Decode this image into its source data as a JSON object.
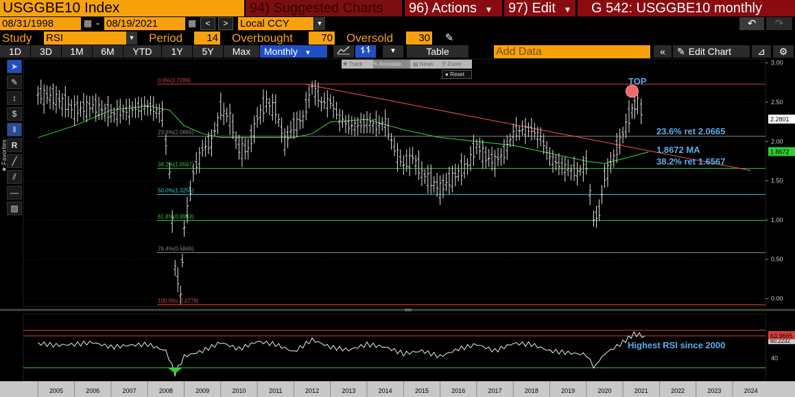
{
  "header": {
    "ticker": "USGGBE10 Index",
    "suggested": "94) Suggested Charts",
    "actions": "96) Actions",
    "edit": "97) Edit",
    "title": "G 542: USGGBE10 monthly"
  },
  "range": {
    "start": "08/31/1998",
    "end": "08/19/2021",
    "sep": "-",
    "currency": "Local CCY"
  },
  "study": {
    "label": "Study",
    "value": "RSI",
    "period_label": "Period",
    "period": "14",
    "overbought_label": "Overbought",
    "overbought": "70",
    "oversold_label": "Oversold",
    "oversold": "30"
  },
  "toolbar": {
    "periods": [
      "1D",
      "3D",
      "1M",
      "6M",
      "YTD",
      "1Y",
      "5Y",
      "Max"
    ],
    "frequency": "Monthly",
    "table": "Table",
    "add_data": "Add Data",
    "edit_chart": "Edit Chart"
  },
  "chart_tools": {
    "track": "Track",
    "annotate": "Annotate",
    "news": "News",
    "zoom": "Zoom",
    "reset": "Reset",
    "favorites": "Favorites"
  },
  "chart_data": {
    "type": "line",
    "price_axis": {
      "ylim": [
        -0.1,
        3.05
      ],
      "ticks": [
        "3.00",
        "2.50",
        "2.00",
        "1.50",
        "1.00",
        "0.50",
        "0.00"
      ],
      "last_price": "2.2801",
      "last_ma": "1.8672",
      "last_price_color": "#ffffff",
      "last_ma_color": "#33cc33"
    },
    "rsi_axis": {
      "ylim": [
        20,
        80
      ],
      "ticks": [
        "40"
      ],
      "last_rsi": "63.9665",
      "partial_label": "60.2232"
    },
    "x_ticks": [
      "2005",
      "2006",
      "2007",
      "2008",
      "2009",
      "2010",
      "2011",
      "2012",
      "2013",
      "2014",
      "2015",
      "2016",
      "2017",
      "2018",
      "2019",
      "2020",
      "2021",
      "2022",
      "2023",
      "2024"
    ],
    "fib_levels": [
      {
        "label": "0.0%(2.7289)",
        "value": 2.7289,
        "color": "#d94040"
      },
      {
        "label": "23.6%(2.0665)",
        "value": 2.0665,
        "color": "#888888"
      },
      {
        "label": "38.2%(1.6567)",
        "value": 1.6567,
        "color": "#33cc33"
      },
      {
        "label": "50.0%(1.3255)",
        "value": 1.3255,
        "color": "#33cccc"
      },
      {
        "label": "61.8%(0.9943)",
        "value": 0.9943,
        "color": "#33cc33"
      },
      {
        "label": "76.4%(0.5846)",
        "value": 0.5846,
        "color": "#888888"
      },
      {
        "label": "100.0%(-0.0778)",
        "value": -0.0778,
        "color": "#d94040"
      }
    ],
    "trendline": {
      "from": [
        2012.3,
        2.73
      ],
      "to": [
        2024.5,
        1.63
      ],
      "color": "#e04848"
    },
    "series": [
      {
        "name": "USGGBE10",
        "x": [
          2005.0,
          2005.5,
          2006.0,
          2006.5,
          2007.0,
          2007.5,
          2008.0,
          2008.4,
          2008.6,
          2008.75,
          2008.9,
          2009.0,
          2009.25,
          2009.5,
          2009.75,
          2010.0,
          2010.25,
          2010.5,
          2010.75,
          2011.0,
          2011.25,
          2011.5,
          2011.75,
          2012.0,
          2012.25,
          2012.5,
          2012.75,
          2013.0,
          2013.25,
          2013.5,
          2013.75,
          2014.0,
          2014.25,
          2014.5,
          2014.75,
          2015.0,
          2015.25,
          2015.5,
          2015.75,
          2016.0,
          2016.25,
          2016.5,
          2016.75,
          2017.0,
          2017.25,
          2017.5,
          2017.75,
          2018.0,
          2018.25,
          2018.5,
          2018.75,
          2019.0,
          2019.25,
          2019.5,
          2019.75,
          2020.0,
          2020.2,
          2020.35,
          2020.5,
          2020.75,
          2021.0,
          2021.25,
          2021.4,
          2021.6
        ],
        "y": [
          2.6,
          2.55,
          2.4,
          2.45,
          2.35,
          2.4,
          2.45,
          2.35,
          1.6,
          0.4,
          0.05,
          0.9,
          1.6,
          1.9,
          2.0,
          2.4,
          2.3,
          1.9,
          1.9,
          2.3,
          2.5,
          2.4,
          2.0,
          2.2,
          2.3,
          2.7,
          2.5,
          2.5,
          2.3,
          2.2,
          2.2,
          2.25,
          2.2,
          2.25,
          1.9,
          1.7,
          1.8,
          1.6,
          1.5,
          1.4,
          1.5,
          1.6,
          1.7,
          1.95,
          1.8,
          1.75,
          1.85,
          2.1,
          2.15,
          2.15,
          2.05,
          1.8,
          1.7,
          1.65,
          1.6,
          1.7,
          1.0,
          1.1,
          1.55,
          1.8,
          2.1,
          2.4,
          2.5,
          2.2801
        ]
      },
      {
        "name": "MA",
        "x": [
          2005.0,
          2006.0,
          2007.0,
          2008.0,
          2008.6,
          2009.0,
          2009.5,
          2010.0,
          2011.0,
          2012.0,
          2012.5,
          2013.0,
          2014.0,
          2015.0,
          2016.0,
          2017.0,
          2018.0,
          2019.0,
          2020.0,
          2020.5,
          2021.0,
          2021.7
        ],
        "y": [
          2.05,
          2.2,
          2.4,
          2.45,
          2.4,
          2.2,
          2.1,
          2.05,
          2.05,
          2.05,
          2.1,
          2.25,
          2.28,
          2.15,
          2.05,
          2.0,
          1.95,
          1.85,
          1.75,
          1.72,
          1.78,
          1.8672
        ]
      },
      {
        "name": "RSI",
        "x": [
          2005.0,
          2005.5,
          2006.0,
          2006.5,
          2007.0,
          2007.5,
          2008.0,
          2008.5,
          2008.75,
          2009.0,
          2009.5,
          2010.0,
          2010.5,
          2011.0,
          2011.5,
          2012.0,
          2012.5,
          2013.0,
          2013.5,
          2014.0,
          2014.5,
          2015.0,
          2015.5,
          2016.0,
          2016.5,
          2017.0,
          2017.5,
          2018.0,
          2018.5,
          2019.0,
          2019.5,
          2020.0,
          2020.2,
          2020.5,
          2021.0,
          2021.3,
          2021.6
        ],
        "y": [
          56,
          54,
          55,
          57,
          52,
          54,
          55,
          48,
          24,
          42,
          48,
          57,
          50,
          58,
          55,
          47,
          60,
          52,
          49,
          55,
          52,
          45,
          48,
          42,
          50,
          55,
          48,
          56,
          55,
          48,
          46,
          44,
          30,
          45,
          57,
          66,
          63.9665
        ]
      }
    ],
    "annotations": {
      "top": "TOP",
      "ret236": "23.6% ret 2.0665",
      "ma": "1.8672 MA",
      "ret382": "38.2% ret 1.6567",
      "rsi_note": "Highest RSI since 2000"
    }
  }
}
